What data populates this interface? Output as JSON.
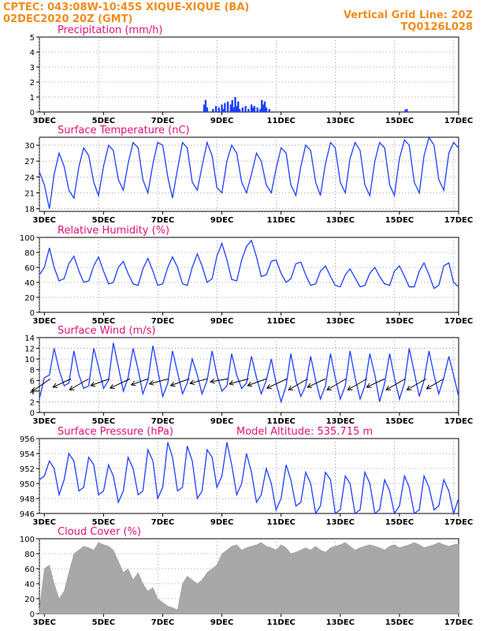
{
  "header": {
    "line1": "CPTEC:   043:08W-10:45S   XIQUE-XIQUE (BA)",
    "line2": "02DEC2020 20Z (GMT)",
    "right1": "Vertical Grid Line: 20Z",
    "right2": "TQ0126L028"
  },
  "colors": {
    "header": "#f08c1c",
    "panel_title": "#e0107a",
    "series": "#1f3fff",
    "cloud": "#a8a8a8",
    "arrow": "#000000"
  },
  "x_axis": {
    "tick_labels": [
      "3DEC",
      "5DEC",
      "7DEC",
      "9DEC",
      "11DEC",
      "13DEC",
      "15DEC",
      "17DEC"
    ],
    "range_days": [
      2.833,
      17.0
    ],
    "tick_days": [
      3,
      5,
      7,
      9,
      11,
      13,
      15,
      17
    ]
  },
  "chart_data": [
    {
      "type": "bar",
      "title": "Precipitation (mm/h)",
      "ylim": [
        0,
        5
      ],
      "yticks": [
        0,
        1,
        2,
        3,
        4,
        5
      ],
      "grid": true,
      "x_days": [
        8.4,
        8.45,
        8.5,
        8.7,
        8.8,
        8.9,
        9.0,
        9.05,
        9.1,
        9.2,
        9.3,
        9.35,
        9.4,
        9.45,
        9.5,
        9.55,
        9.6,
        9.7,
        9.8,
        9.9,
        10.0,
        10.05,
        10.1,
        10.2,
        10.3,
        10.35,
        10.4,
        10.45,
        10.5,
        10.6,
        15.2,
        15.25
      ],
      "values": [
        0.5,
        0.8,
        0.3,
        0.2,
        0.4,
        0.3,
        0.5,
        0.2,
        0.6,
        0.7,
        0.5,
        0.8,
        0.3,
        1.0,
        0.4,
        0.7,
        0.2,
        0.3,
        0.4,
        0.2,
        0.5,
        0.3,
        0.4,
        0.3,
        0.2,
        0.8,
        0.5,
        0.7,
        0.3,
        0.2,
        0.15,
        0.2
      ]
    },
    {
      "type": "line",
      "title": "Surface Temperature (nC)",
      "ylim": [
        17.5,
        31.5
      ],
      "yticks": [
        18,
        21,
        24,
        27,
        30
      ],
      "grid": true,
      "x_days": [
        2.83,
        3.0,
        3.17,
        3.33,
        3.5,
        3.67,
        3.83,
        4.0,
        4.17,
        4.33,
        4.5,
        4.67,
        4.83,
        5.0,
        5.17,
        5.33,
        5.5,
        5.67,
        5.83,
        6.0,
        6.17,
        6.33,
        6.5,
        6.67,
        6.83,
        7.0,
        7.17,
        7.33,
        7.5,
        7.67,
        7.83,
        8.0,
        8.17,
        8.33,
        8.5,
        8.67,
        8.83,
        9.0,
        9.17,
        9.33,
        9.5,
        9.67,
        9.83,
        10.0,
        10.17,
        10.33,
        10.5,
        10.67,
        10.83,
        11.0,
        11.17,
        11.33,
        11.5,
        11.67,
        11.83,
        12.0,
        12.17,
        12.33,
        12.5,
        12.67,
        12.83,
        13.0,
        13.17,
        13.33,
        13.5,
        13.67,
        13.83,
        14.0,
        14.17,
        14.33,
        14.5,
        14.67,
        14.83,
        15.0,
        15.17,
        15.33,
        15.5,
        15.67,
        15.83,
        16.0,
        16.17,
        16.33,
        16.5,
        16.67,
        16.83,
        17.0
      ],
      "values": [
        25.0,
        22.5,
        18.0,
        24.5,
        28.5,
        26.0,
        21.5,
        20.0,
        26.0,
        29.5,
        28.0,
        23.0,
        20.5,
        26.0,
        30.0,
        29.0,
        23.5,
        21.5,
        26.5,
        30.5,
        29.5,
        23.5,
        21.0,
        26.5,
        30.5,
        30.0,
        24.0,
        20.0,
        25.5,
        30.5,
        29.5,
        23.0,
        21.5,
        26.0,
        30.5,
        28.0,
        22.0,
        21.0,
        27.0,
        30.0,
        28.5,
        23.0,
        21.0,
        24.5,
        28.5,
        27.0,
        22.5,
        21.0,
        25.5,
        29.5,
        28.5,
        22.5,
        20.5,
        26.0,
        30.0,
        29.0,
        23.0,
        20.5,
        26.5,
        30.5,
        29.5,
        23.0,
        21.0,
        27.5,
        30.5,
        29.0,
        22.5,
        20.5,
        27.0,
        30.5,
        29.5,
        22.5,
        20.5,
        27.5,
        31.0,
        30.0,
        23.0,
        21.0,
        28.0,
        31.5,
        30.0,
        23.5,
        21.5,
        28.5,
        30.5,
        29.5
      ]
    },
    {
      "type": "line",
      "title": "Relative Humidity (%)",
      "ylim": [
        0,
        100
      ],
      "yticks": [
        0,
        20,
        40,
        60,
        80,
        100
      ],
      "grid": true,
      "x_days": [
        2.83,
        3.0,
        3.17,
        3.33,
        3.5,
        3.67,
        3.83,
        4.0,
        4.17,
        4.33,
        4.5,
        4.67,
        4.83,
        5.0,
        5.17,
        5.33,
        5.5,
        5.67,
        5.83,
        6.0,
        6.17,
        6.33,
        6.5,
        6.67,
        6.83,
        7.0,
        7.17,
        7.33,
        7.5,
        7.67,
        7.83,
        8.0,
        8.17,
        8.33,
        8.5,
        8.67,
        8.83,
        9.0,
        9.17,
        9.33,
        9.5,
        9.67,
        9.83,
        10.0,
        10.17,
        10.33,
        10.5,
        10.67,
        10.83,
        11.0,
        11.17,
        11.33,
        11.5,
        11.67,
        11.83,
        12.0,
        12.17,
        12.33,
        12.5,
        12.67,
        12.83,
        13.0,
        13.17,
        13.33,
        13.5,
        13.67,
        13.83,
        14.0,
        14.17,
        14.33,
        14.5,
        14.67,
        14.83,
        15.0,
        15.17,
        15.33,
        15.5,
        15.67,
        15.83,
        16.0,
        16.17,
        16.33,
        16.5,
        16.67,
        16.83,
        17.0
      ],
      "values": [
        50,
        60,
        86,
        60,
        42,
        45,
        65,
        75,
        55,
        40,
        42,
        62,
        74,
        55,
        38,
        40,
        60,
        68,
        52,
        38,
        36,
        58,
        72,
        55,
        36,
        38,
        60,
        74,
        60,
        38,
        36,
        60,
        78,
        62,
        40,
        45,
        75,
        92,
        70,
        44,
        42,
        70,
        88,
        96,
        74,
        48,
        50,
        68,
        70,
        52,
        40,
        45,
        65,
        67,
        50,
        36,
        38,
        55,
        62,
        48,
        36,
        34,
        50,
        58,
        46,
        34,
        36,
        52,
        60,
        48,
        38,
        36,
        55,
        62,
        48,
        34,
        34,
        55,
        66,
        50,
        32,
        36,
        62,
        66,
        40,
        34
      ]
    },
    {
      "type": "line",
      "title": "Surface Wind (m/s)",
      "ylim": [
        0,
        14
      ],
      "yticks": [
        0,
        2,
        4,
        6,
        8,
        10,
        12,
        14
      ],
      "grid": true,
      "x_days": [
        2.83,
        3.0,
        3.17,
        3.33,
        3.5,
        3.67,
        3.83,
        4.0,
        4.17,
        4.33,
        4.5,
        4.67,
        4.83,
        5.0,
        5.17,
        5.33,
        5.5,
        5.67,
        5.83,
        6.0,
        6.17,
        6.33,
        6.5,
        6.67,
        6.83,
        7.0,
        7.17,
        7.33,
        7.5,
        7.67,
        7.83,
        8.0,
        8.17,
        8.33,
        8.5,
        8.67,
        8.83,
        9.0,
        9.17,
        9.33,
        9.5,
        9.67,
        9.83,
        10.0,
        10.17,
        10.33,
        10.5,
        10.67,
        10.83,
        11.0,
        11.17,
        11.33,
        11.5,
        11.67,
        11.83,
        12.0,
        12.17,
        12.33,
        12.5,
        12.67,
        12.83,
        13.0,
        13.17,
        13.33,
        13.5,
        13.67,
        13.83,
        14.0,
        14.17,
        14.33,
        14.5,
        14.67,
        14.83,
        15.0,
        15.17,
        15.33,
        15.5,
        15.67,
        15.83,
        16.0,
        16.17,
        16.33,
        16.5,
        16.67,
        16.83,
        17.0
      ],
      "values": [
        2.5,
        6.5,
        7.0,
        12.0,
        8.0,
        5.0,
        5.5,
        11.5,
        7.0,
        4.5,
        5.0,
        12.0,
        8.5,
        4.5,
        6.0,
        13.0,
        8.5,
        4.0,
        6.5,
        12.0,
        8.0,
        3.5,
        6.0,
        12.5,
        8.0,
        3.0,
        5.5,
        11.5,
        7.5,
        3.5,
        5.5,
        10.0,
        7.0,
        3.5,
        6.0,
        11.5,
        7.0,
        4.0,
        5.0,
        11.0,
        7.0,
        4.5,
        5.5,
        10.5,
        6.5,
        3.5,
        6.0,
        10.0,
        5.5,
        2.0,
        5.0,
        11.0,
        6.0,
        3.0,
        5.0,
        10.5,
        6.0,
        2.5,
        5.0,
        11.0,
        6.5,
        2.5,
        5.0,
        11.5,
        6.5,
        2.5,
        5.0,
        11.0,
        7.0,
        2.0,
        5.5,
        11.0,
        6.5,
        2.5,
        5.5,
        12.0,
        7.5,
        3.0,
        6.0,
        11.5,
        7.0,
        3.5,
        6.5,
        10.5,
        7.0,
        3.0
      ],
      "arrows_days": [
        3.2,
        3.9,
        4.5,
        5.2,
        5.9,
        6.5,
        7.2,
        7.9,
        8.5,
        9.2,
        9.9,
        10.5,
        11.2,
        11.9,
        12.5,
        13.2,
        13.9,
        14.5,
        15.2,
        15.9,
        16.5
      ],
      "arrows_dir": [
        35,
        25,
        30,
        20,
        25,
        20,
        15,
        20,
        15,
        10,
        15,
        20,
        25,
        30,
        25,
        30,
        30,
        25,
        30,
        30,
        30
      ],
      "arrows_len": [
        1.0,
        0.9,
        1.0,
        0.9,
        1.0,
        0.8,
        0.9,
        0.9,
        0.8,
        0.8,
        0.9,
        0.9,
        1.0,
        1.0,
        0.9,
        1.0,
        1.0,
        0.9,
        1.0,
        1.0,
        0.9
      ]
    },
    {
      "type": "line",
      "title": "Surface Pressure (hPa)",
      "subtitle": "Model Altitude: 535.715 m",
      "ylim": [
        946,
        956
      ],
      "yticks": [
        946,
        948,
        950,
        952,
        954,
        956
      ],
      "grid": true,
      "x_days": [
        2.83,
        3.0,
        3.17,
        3.33,
        3.5,
        3.67,
        3.83,
        4.0,
        4.17,
        4.33,
        4.5,
        4.67,
        4.83,
        5.0,
        5.17,
        5.33,
        5.5,
        5.67,
        5.83,
        6.0,
        6.17,
        6.33,
        6.5,
        6.67,
        6.83,
        7.0,
        7.17,
        7.33,
        7.5,
        7.67,
        7.83,
        8.0,
        8.17,
        8.33,
        8.5,
        8.67,
        8.83,
        9.0,
        9.17,
        9.33,
        9.5,
        9.67,
        9.83,
        10.0,
        10.17,
        10.33,
        10.5,
        10.67,
        10.83,
        11.0,
        11.17,
        11.33,
        11.5,
        11.67,
        11.83,
        12.0,
        12.17,
        12.33,
        12.5,
        12.67,
        12.83,
        13.0,
        13.17,
        13.33,
        13.5,
        13.67,
        13.83,
        14.0,
        14.17,
        14.33,
        14.5,
        14.67,
        14.83,
        15.0,
        15.17,
        15.33,
        15.5,
        15.67,
        15.83,
        16.0,
        16.17,
        16.33,
        16.5,
        16.67,
        16.83,
        17.0
      ],
      "values": [
        950.5,
        951.0,
        953.0,
        952.0,
        948.5,
        950.5,
        954.0,
        953.0,
        949.0,
        949.5,
        953.5,
        952.5,
        948.5,
        949.0,
        952.5,
        951.0,
        947.5,
        949.0,
        953.5,
        952.0,
        948.5,
        949.0,
        954.5,
        953.0,
        948.0,
        949.5,
        955.5,
        953.5,
        949.0,
        949.5,
        955.0,
        953.0,
        948.0,
        949.0,
        954.5,
        953.5,
        949.5,
        951.0,
        955.5,
        952.5,
        948.5,
        950.0,
        954.0,
        951.5,
        947.5,
        948.5,
        952.0,
        950.0,
        946.5,
        948.0,
        952.5,
        950.5,
        947.0,
        947.5,
        951.5,
        950.0,
        946.0,
        947.0,
        951.5,
        950.5,
        946.0,
        946.5,
        951.0,
        950.0,
        946.0,
        946.5,
        951.5,
        950.0,
        946.0,
        946.5,
        950.5,
        949.0,
        946.0,
        947.0,
        951.0,
        949.5,
        946.0,
        946.5,
        951.0,
        949.5,
        946.5,
        947.0,
        950.5,
        949.0,
        946.0,
        948.0
      ]
    },
    {
      "type": "area",
      "title": "Cloud Cover (%)",
      "ylim": [
        0,
        100
      ],
      "yticks": [
        0,
        20,
        40,
        60,
        80,
        100
      ],
      "grid": true,
      "x_days": [
        2.83,
        3.0,
        3.17,
        3.33,
        3.5,
        3.67,
        3.83,
        4.0,
        4.17,
        4.33,
        4.5,
        4.67,
        4.83,
        5.0,
        5.17,
        5.33,
        5.5,
        5.67,
        5.83,
        6.0,
        6.17,
        6.33,
        6.5,
        6.67,
        6.83,
        7.0,
        7.17,
        7.33,
        7.5,
        7.67,
        7.83,
        8.0,
        8.17,
        8.33,
        8.5,
        8.67,
        8.83,
        9.0,
        9.17,
        9.33,
        9.5,
        9.67,
        9.83,
        10.0,
        10.17,
        10.33,
        10.5,
        10.67,
        10.83,
        11.0,
        11.17,
        11.33,
        11.5,
        11.67,
        11.83,
        12.0,
        12.17,
        12.33,
        12.5,
        12.67,
        12.83,
        13.0,
        13.17,
        13.33,
        13.5,
        13.67,
        13.83,
        14.0,
        14.17,
        14.33,
        14.5,
        14.67,
        14.83,
        15.0,
        15.17,
        15.33,
        15.5,
        15.67,
        15.83,
        16.0,
        16.17,
        16.33,
        16.5,
        16.67,
        16.83,
        17.0
      ],
      "values": [
        5,
        60,
        65,
        40,
        20,
        30,
        55,
        80,
        85,
        90,
        88,
        85,
        95,
        92,
        90,
        85,
        70,
        55,
        60,
        45,
        55,
        40,
        30,
        35,
        20,
        15,
        10,
        8,
        5,
        40,
        50,
        45,
        40,
        45,
        55,
        60,
        65,
        80,
        85,
        90,
        92,
        85,
        88,
        90,
        92,
        95,
        90,
        88,
        85,
        92,
        88,
        80,
        82,
        85,
        88,
        85,
        90,
        85,
        82,
        88,
        90,
        92,
        95,
        90,
        85,
        88,
        90,
        92,
        90,
        88,
        85,
        90,
        92,
        88,
        90,
        92,
        95,
        92,
        88,
        90,
        92,
        95,
        92,
        90,
        92,
        93
      ]
    }
  ]
}
